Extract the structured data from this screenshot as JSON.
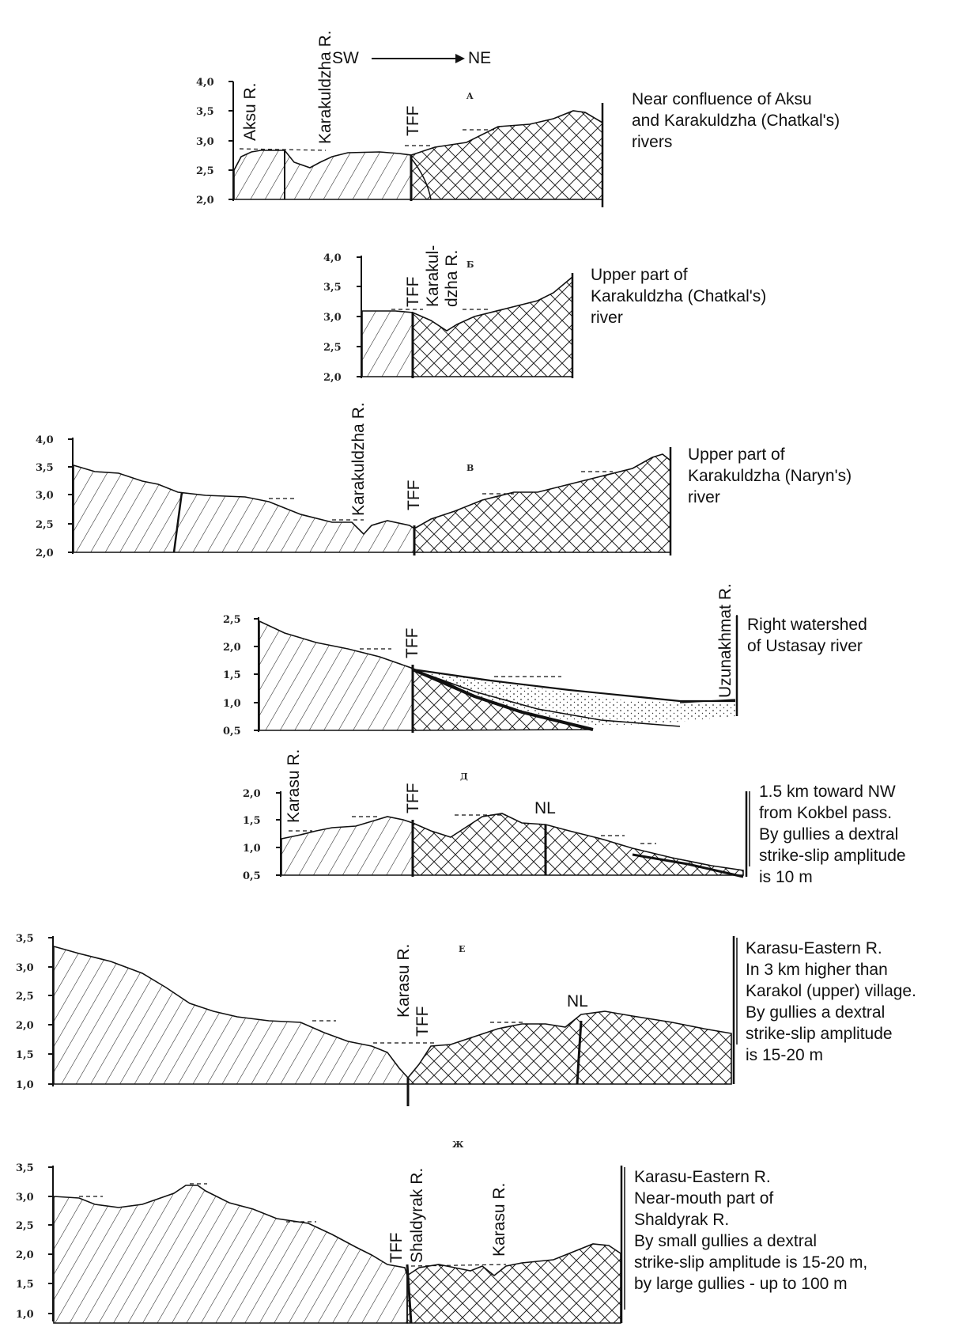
{
  "direction": {
    "from": "SW",
    "to": "NE"
  },
  "profiles": [
    {
      "letter": "A",
      "ticks": [
        "4,0",
        "3,5",
        "3,0",
        "2,5",
        "2,0"
      ],
      "labels": [
        "Aksu R.",
        "Karakuldzha R.",
        "TFF"
      ],
      "description": [
        "Near confluence of Aksu",
        "and Karakuldzha (Chatkal's)",
        "rivers"
      ]
    },
    {
      "letter": "Б",
      "ticks": [
        "4,0",
        "3,5",
        "3,0",
        "2,5",
        "2,0"
      ],
      "labels": [
        "TFF",
        "Karakul-",
        "dzha R."
      ],
      "description": [
        "Upper part of",
        "Karakuldzha (Chatkal's)",
        "river"
      ]
    },
    {
      "letter": "В",
      "ticks": [
        "4,0",
        "3,5",
        "3,0",
        "2,5",
        "2,0"
      ],
      "labels": [
        "Karakuldzha R.",
        "TFF"
      ],
      "description": [
        "Upper part of",
        "Karakuldzha (Naryn's)",
        "river"
      ]
    },
    {
      "letter": "",
      "ticks": [
        "2,5",
        "2,0",
        "1,5",
        "1,0",
        "0,5"
      ],
      "labels": [
        "TFF",
        "Uzunakhmat R."
      ],
      "description": [
        "Right watershed",
        "of Ustasay river"
      ]
    },
    {
      "letter": "Д",
      "ticks": [
        "2,0",
        "1,5",
        "1,0",
        "0,5"
      ],
      "labels": [
        "Karasu R.",
        "TFF",
        "NL"
      ],
      "description": [
        "1.5 km toward NW",
        "from Kokbel pass.",
        "By gullies a dextral",
        "strike-slip amplitude",
        "is 10 m"
      ]
    },
    {
      "letter": "Е",
      "ticks": [
        "3,5",
        "3,0",
        "2,5",
        "2,0",
        "1,5",
        "1,0"
      ],
      "labels": [
        "Karasu R.",
        "TFF",
        "NL"
      ],
      "description": [
        "Karasu-Eastern R.",
        "In 3 km higher than",
        "Karakol (upper) village.",
        "By gullies a dextral",
        "strike-slip amplitude",
        "is 15-20 m"
      ]
    },
    {
      "letter": "Ж",
      "ticks": [
        "3,5",
        "3,0",
        "2,5",
        "2,0",
        "1,5",
        "1,0"
      ],
      "labels": [
        "TFF",
        "Shaldyrak R.",
        "Karasu R."
      ],
      "description": [
        "Karasu-Eastern R.",
        "Near-mouth part of",
        "Shaldyrak R.",
        "By small gullies a dextral",
        "strike-slip amplitude is 15-20 m,",
        "by large gullies - up to 100 m"
      ]
    }
  ]
}
